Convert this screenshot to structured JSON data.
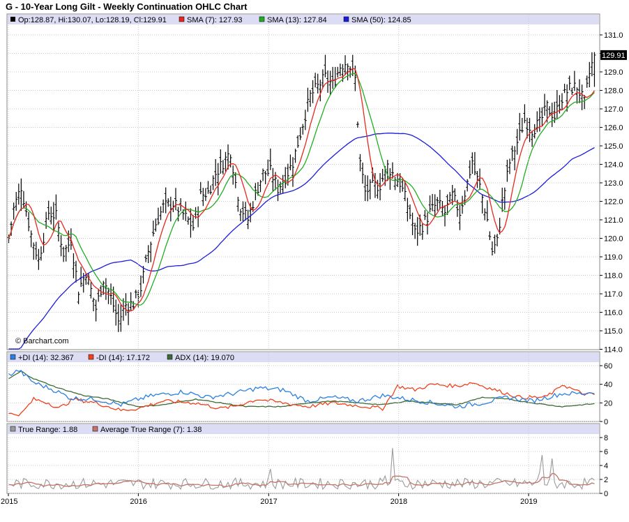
{
  "title": "G - 10-Year Long Gilt - Weekly Continuation OHLC Chart",
  "watermark": "© Barchart.com",
  "colors": {
    "bars": "#000000",
    "sma7": "#e8271c",
    "sma13": "#21ad21",
    "sma50": "#1c1cdc",
    "plus_di": "#2a7fe0",
    "minus_di": "#f0401a",
    "adx": "#3d6b34",
    "true_range": "#9a9a9a",
    "atr": "#c0746a",
    "legend_bg": "#dcdcf4",
    "grid": "#c8c8c8"
  },
  "main_panel": {
    "legend": {
      "ohlc": "Op:128.87, Hi:130.07, Lo:128.19, Cl:129.91",
      "sma7": "SMA (7): 127.93",
      "sma13": "SMA (13): 127.84",
      "sma50": "SMA (50): 124.85"
    },
    "last_price": "129.91"
  },
  "dmi_panel": {
    "legend": {
      "plus_di": "+DI (14): 32.367",
      "minus_di": "-DI (14): 17.172",
      "adx": "ADX (14): 19.070"
    }
  },
  "tr_panel": {
    "legend": {
      "tr": "True Range: 1.88",
      "atr": "Average True Range (7): 1.38"
    }
  },
  "chart_data": [
    {
      "type": "ohlc",
      "frequency": "weekly",
      "ylim": [
        114,
        131
      ],
      "ytick_labels": [
        "114.0",
        "115.0",
        "116.0",
        "117.0",
        "118.0",
        "119.0",
        "120.0",
        "121.0",
        "122.0",
        "123.0",
        "124.0",
        "125.0",
        "126.0",
        "127.0",
        "128.0",
        "129.0",
        "130.0",
        "131.0"
      ],
      "xtick_labels": [
        "2015",
        "2016",
        "2017",
        "2018",
        "2019"
      ],
      "grid": true,
      "anchors": [
        [
          "2015-01-02",
          120.0
        ],
        [
          "2015-01-16",
          121.6
        ],
        [
          "2015-02-06",
          122.8
        ],
        [
          "2015-03-06",
          120.2
        ],
        [
          "2015-03-27",
          118.8
        ],
        [
          "2015-04-24",
          121.4
        ],
        [
          "2015-05-15",
          121.2
        ],
        [
          "2015-06-05",
          119.2
        ],
        [
          "2015-06-26",
          119.9
        ],
        [
          "2015-07-17",
          117.2
        ],
        [
          "2015-08-07",
          118.2
        ],
        [
          "2015-09-04",
          116.2
        ],
        [
          "2015-09-25",
          117.8
        ],
        [
          "2015-10-16",
          116.8
        ],
        [
          "2015-11-06",
          115.5
        ],
        [
          "2015-11-27",
          116.4
        ],
        [
          "2015-12-18",
          116.5
        ],
        [
          "2016-01-08",
          117.3
        ],
        [
          "2016-01-29",
          119.3
        ],
        [
          "2016-02-19",
          120.8
        ],
        [
          "2016-03-11",
          121.7
        ],
        [
          "2016-04-08",
          121.9
        ],
        [
          "2016-05-06",
          121.3
        ],
        [
          "2016-06-03",
          120.6
        ],
        [
          "2016-06-24",
          122.3
        ],
        [
          "2016-07-15",
          122.5
        ],
        [
          "2016-08-05",
          123.5
        ],
        [
          "2016-08-26",
          124.1
        ],
        [
          "2016-09-16",
          124.7
        ],
        [
          "2016-09-30",
          123.0
        ],
        [
          "2016-10-14",
          121.7
        ],
        [
          "2016-11-04",
          121.0
        ],
        [
          "2016-11-25",
          122.4
        ],
        [
          "2016-12-16",
          123.5
        ],
        [
          "2017-01-06",
          123.6
        ],
        [
          "2017-01-27",
          122.7
        ],
        [
          "2017-02-17",
          123.3
        ],
        [
          "2017-03-10",
          124.1
        ],
        [
          "2017-04-07",
          126.2
        ],
        [
          "2017-04-28",
          127.7
        ],
        [
          "2017-05-19",
          128.2
        ],
        [
          "2017-06-09",
          128.7
        ],
        [
          "2017-06-30",
          128.3
        ],
        [
          "2017-07-21",
          129.3
        ],
        [
          "2017-08-11",
          129.6
        ],
        [
          "2017-09-01",
          128.6
        ],
        [
          "2017-09-15",
          124.1
        ],
        [
          "2017-09-29",
          122.5
        ],
        [
          "2017-10-20",
          122.8
        ],
        [
          "2017-11-10",
          122.9
        ],
        [
          "2017-12-01",
          123.9
        ],
        [
          "2017-12-22",
          123.3
        ],
        [
          "2018-01-05",
          123.0
        ],
        [
          "2018-01-26",
          121.8
        ],
        [
          "2018-02-16",
          120.3
        ],
        [
          "2018-03-09",
          120.7
        ],
        [
          "2018-03-30",
          121.4
        ],
        [
          "2018-04-20",
          121.9
        ],
        [
          "2018-05-11",
          121.4
        ],
        [
          "2018-06-01",
          122.3
        ],
        [
          "2018-06-22",
          121.4
        ],
        [
          "2018-07-13",
          123.0
        ],
        [
          "2018-07-27",
          124.2
        ],
        [
          "2018-08-03",
          123.6
        ],
        [
          "2018-08-17",
          122.8
        ],
        [
          "2018-09-07",
          121.0
        ],
        [
          "2018-09-21",
          119.3
        ],
        [
          "2018-10-05",
          119.8
        ],
        [
          "2018-10-19",
          121.9
        ],
        [
          "2018-11-09",
          124.1
        ],
        [
          "2018-11-30",
          125.2
        ],
        [
          "2018-12-21",
          126.4
        ],
        [
          "2019-01-11",
          125.9
        ],
        [
          "2019-02-01",
          126.2
        ],
        [
          "2019-02-22",
          127.1
        ],
        [
          "2019-03-15",
          126.6
        ],
        [
          "2019-04-05",
          127.6
        ],
        [
          "2019-04-26",
          128.1
        ],
        [
          "2019-05-17",
          128.2
        ],
        [
          "2019-06-07",
          127.3
        ],
        [
          "2019-06-21",
          128.9
        ],
        [
          "2019-07-05",
          129.91
        ]
      ],
      "last_bar": {
        "open": 128.87,
        "high": 130.07,
        "low": 128.19,
        "close": 129.91
      },
      "series": [
        {
          "name": "SMA (7)",
          "window": 7,
          "last": 127.93
        },
        {
          "name": "SMA (13)",
          "window": 13,
          "last": 127.84
        },
        {
          "name": "SMA (50)",
          "window": 50,
          "last": 124.85
        }
      ]
    },
    {
      "type": "line",
      "ylim": [
        0,
        60
      ],
      "ytick_labels": [
        "0",
        "20",
        "40",
        "60"
      ],
      "xtick_labels": [
        "2015",
        "2016",
        "2017",
        "2018",
        "2019"
      ],
      "anchors": {
        "plus_di": [
          [
            0,
            50
          ],
          [
            4,
            55
          ],
          [
            10,
            42
          ],
          [
            18,
            34
          ],
          [
            25,
            25
          ],
          [
            35,
            24
          ],
          [
            45,
            18
          ],
          [
            52,
            24
          ],
          [
            58,
            28
          ],
          [
            70,
            32
          ],
          [
            80,
            26
          ],
          [
            90,
            30
          ],
          [
            100,
            36
          ],
          [
            110,
            34
          ],
          [
            120,
            22
          ],
          [
            130,
            26
          ],
          [
            140,
            22
          ],
          [
            150,
            28
          ],
          [
            160,
            24
          ],
          [
            170,
            20
          ],
          [
            180,
            16
          ],
          [
            190,
            20
          ],
          [
            200,
            26
          ],
          [
            210,
            22
          ],
          [
            222,
            30
          ],
          [
            230,
            30
          ],
          [
            240,
            34
          ],
          [
            250,
            32
          ],
          [
            262,
            26
          ],
          [
            270,
            30
          ]
        ],
        "minus_di": [
          [
            0,
            8
          ],
          [
            5,
            8
          ],
          [
            10,
            24
          ],
          [
            16,
            20
          ],
          [
            20,
            14
          ],
          [
            26,
            24
          ],
          [
            35,
            20
          ],
          [
            45,
            12
          ],
          [
            52,
            14
          ],
          [
            62,
            22
          ],
          [
            75,
            20
          ],
          [
            85,
            14
          ],
          [
            90,
            16
          ],
          [
            100,
            24
          ],
          [
            110,
            20
          ],
          [
            120,
            16
          ],
          [
            130,
            20
          ],
          [
            150,
            14
          ],
          [
            156,
            38
          ],
          [
            163,
            34
          ],
          [
            170,
            40
          ],
          [
            180,
            38
          ],
          [
            186,
            42
          ],
          [
            195,
            34
          ],
          [
            205,
            26
          ],
          [
            215,
            26
          ],
          [
            220,
            34
          ],
          [
            222,
            40
          ],
          [
            230,
            30
          ],
          [
            245,
            26
          ],
          [
            262,
            22
          ],
          [
            270,
            17
          ]
        ],
        "adx": [
          [
            0,
            46
          ],
          [
            5,
            54
          ],
          [
            10,
            46
          ],
          [
            20,
            36
          ],
          [
            30,
            28
          ],
          [
            40,
            24
          ],
          [
            52,
            16
          ],
          [
            62,
            18
          ],
          [
            75,
            24
          ],
          [
            85,
            20
          ],
          [
            95,
            16
          ],
          [
            110,
            16
          ],
          [
            120,
            20
          ],
          [
            130,
            22
          ],
          [
            140,
            20
          ],
          [
            150,
            18
          ],
          [
            160,
            22
          ],
          [
            170,
            20
          ],
          [
            180,
            18
          ],
          [
            190,
            26
          ],
          [
            200,
            24
          ],
          [
            210,
            20
          ],
          [
            222,
            16
          ],
          [
            230,
            18
          ],
          [
            240,
            20
          ],
          [
            250,
            22
          ],
          [
            262,
            20
          ],
          [
            270,
            19
          ]
        ]
      },
      "series": [
        {
          "name": "+DI (14)",
          "last": 32.367
        },
        {
          "name": "-DI (14)",
          "last": 17.172
        },
        {
          "name": "ADX (14)",
          "last": 19.07
        }
      ]
    },
    {
      "type": "line",
      "ylim": [
        0,
        8
      ],
      "ytick_labels": [
        "0",
        "2",
        "4",
        "6",
        "8"
      ],
      "xtick_labels": [
        "2015",
        "2016",
        "2017",
        "2018",
        "2019"
      ],
      "spikes": [
        [
          154,
          6.5
        ],
        [
          214,
          5.5
        ],
        [
          218,
          5.0
        ],
        [
          213,
          3.0
        ],
        [
          105,
          3.5
        ],
        [
          151,
          2.5
        ]
      ],
      "series": [
        {
          "name": "True Range",
          "last": 1.88
        },
        {
          "name": "Average True Range (7)",
          "last": 1.38
        }
      ]
    }
  ]
}
